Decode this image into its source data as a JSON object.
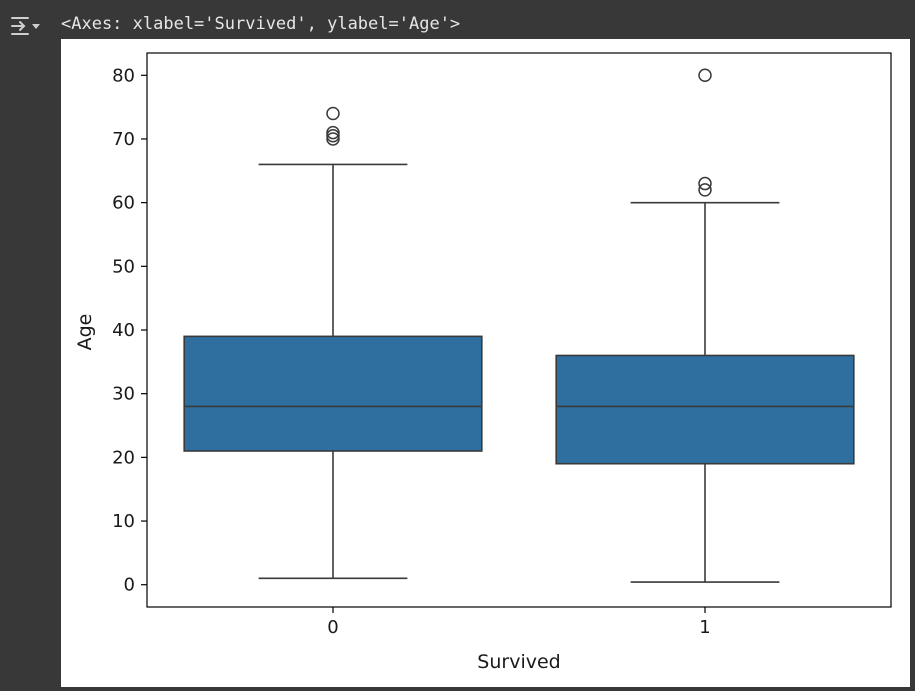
{
  "output": {
    "text": "<Axes: xlabel='Survived', ylabel='Age'>",
    "toggle_icon": "output-collapse-icon"
  },
  "colors": {
    "page_background": "#383838",
    "figure_background": "#ffffff",
    "box_fill": "#2f6f9f",
    "box_line": "#3a3a3a",
    "axis": "#000000"
  },
  "chart_data": {
    "type": "box",
    "title": "",
    "xlabel": "Survived",
    "ylabel": "Age",
    "categories": [
      "0",
      "1"
    ],
    "ylim": [
      -3.5,
      83.5
    ],
    "yticks": [
      0,
      10,
      20,
      30,
      40,
      50,
      60,
      70,
      80
    ],
    "grid": false,
    "boxes": [
      {
        "category": "0",
        "whisker_low": 1,
        "q1": 21,
        "median": 28,
        "q3": 39,
        "whisker_high": 66,
        "outliers": [
          70,
          70.5,
          71,
          74
        ]
      },
      {
        "category": "1",
        "whisker_low": 0.42,
        "q1": 19,
        "median": 28,
        "q3": 36,
        "whisker_high": 60,
        "outliers": [
          62,
          63,
          80
        ]
      }
    ]
  }
}
